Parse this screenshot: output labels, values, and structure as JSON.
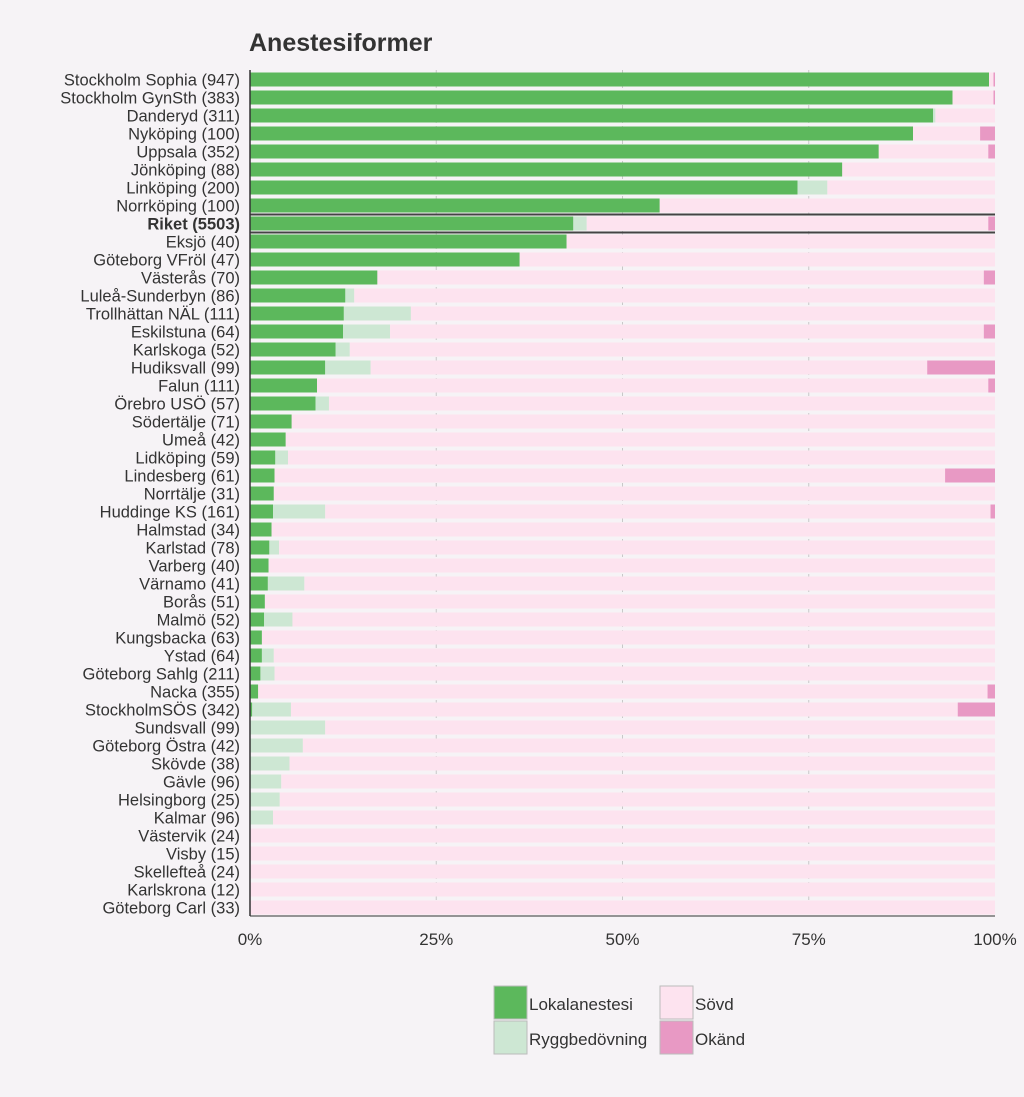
{
  "chart_data": {
    "type": "bar",
    "orientation": "horizontal",
    "stacked": true,
    "normalized": true,
    "title": "Anestesiformer",
    "xlabel": "",
    "ylabel": "",
    "xlim": [
      0,
      100
    ],
    "x_ticks": [
      "0%",
      "25%",
      "50%",
      "75%",
      "100%"
    ],
    "grid": true,
    "legend_position": "bottom",
    "highlighted_category": "Riket (5503)",
    "categories": [
      "Stockholm Sophia (947)",
      "Stockholm GynSth (383)",
      "Danderyd (311)",
      "Nyköping (100)",
      "Uppsala (352)",
      "Jönköping (88)",
      "Linköping (200)",
      "Norrköping (100)",
      "Riket (5503)",
      "Eksjö (40)",
      "Göteborg VFröl (47)",
      "Västerås (70)",
      "Luleå-Sunderbyn (86)",
      "Trollhättan NÄL (111)",
      "Eskilstuna (64)",
      "Karlskoga (52)",
      "Hudiksvall (99)",
      "Falun (111)",
      "Örebro USÖ (57)",
      "Södertälje (71)",
      "Umeå (42)",
      "Lidköping (59)",
      "Lindesberg (61)",
      "Norrtälje (31)",
      "Huddinge KS (161)",
      "Halmstad (34)",
      "Karlstad (78)",
      "Varberg (40)",
      "Värnamo (41)",
      "Borås (51)",
      "Malmö (52)",
      "Kungsbacka (63)",
      "Ystad (64)",
      "Göteborg Sahlg (211)",
      "Nacka (355)",
      "StockholmSÖS (342)",
      "Sundsvall (99)",
      "Göteborg Östra (42)",
      "Skövde (38)",
      "Gävle (96)",
      "Helsingborg (25)",
      "Kalmar (96)",
      "Västervik (24)",
      "Visby (15)",
      "Skellefteå (24)",
      "Karlskrona (12)",
      "Göteborg Carl (33)"
    ],
    "series": [
      {
        "name": "Lokalanestesi",
        "color": "#5cb85c",
        "values": [
          99.2,
          94.3,
          91.7,
          89.0,
          84.4,
          79.5,
          73.5,
          55.0,
          43.4,
          42.5,
          36.2,
          17.1,
          12.8,
          12.6,
          12.5,
          11.5,
          10.1,
          9.0,
          8.8,
          5.6,
          4.8,
          3.4,
          3.3,
          3.2,
          3.1,
          2.9,
          2.6,
          2.5,
          2.4,
          2.0,
          1.9,
          1.6,
          1.6,
          1.4,
          1.1,
          0.3,
          0.0,
          0.0,
          0.0,
          0.0,
          0.0,
          0.0,
          0.0,
          0.0,
          0.0,
          0.0,
          0.0
        ]
      },
      {
        "name": "Ryggbedövning",
        "color": "#cde7d3",
        "values": [
          0.0,
          0.0,
          0.3,
          0.0,
          0.0,
          0.0,
          4.0,
          0.0,
          1.8,
          0.0,
          0.0,
          0.0,
          1.2,
          9.0,
          6.3,
          1.9,
          6.1,
          0.0,
          1.8,
          0.0,
          0.0,
          1.7,
          0.0,
          0.0,
          7.0,
          0.0,
          1.3,
          0.0,
          4.9,
          0.0,
          3.8,
          0.0,
          1.6,
          1.9,
          0.0,
          5.2,
          10.1,
          7.1,
          5.3,
          4.2,
          4.0,
          3.1,
          0.0,
          0.0,
          0.0,
          0.0,
          0.0
        ]
      },
      {
        "name": "Sövd",
        "color": "#fde3ef",
        "values": [
          0.6,
          5.5,
          8.0,
          9.0,
          14.7,
          20.5,
          22.5,
          45.0,
          53.9,
          57.5,
          63.8,
          81.4,
          86.0,
          78.4,
          79.7,
          86.6,
          74.7,
          90.1,
          89.4,
          94.4,
          95.2,
          94.9,
          90.0,
          96.8,
          89.3,
          97.1,
          96.1,
          97.5,
          92.7,
          98.0,
          94.3,
          98.4,
          96.8,
          96.7,
          97.9,
          89.5,
          89.9,
          92.9,
          94.7,
          95.8,
          96.0,
          96.9,
          100.0,
          100.0,
          100.0,
          100.0,
          100.0
        ]
      },
      {
        "name": "Okänd",
        "color": "#e899c4",
        "values": [
          0.2,
          0.2,
          0.0,
          2.0,
          0.9,
          0.0,
          0.0,
          0.0,
          0.9,
          0.0,
          0.0,
          1.5,
          0.0,
          0.0,
          1.5,
          0.0,
          9.1,
          0.9,
          0.0,
          0.0,
          0.0,
          0.0,
          6.7,
          0.0,
          0.6,
          0.0,
          0.0,
          0.0,
          0.0,
          0.0,
          0.0,
          0.0,
          0.0,
          0.0,
          1.0,
          5.0,
          0.0,
          0.0,
          0.0,
          0.0,
          0.0,
          0.0,
          0.0,
          0.0,
          0.0,
          0.0,
          0.0
        ]
      }
    ]
  },
  "colors": {
    "background": "#f6f3f6",
    "grid": "#c8c8c8",
    "axis": "#333333"
  }
}
